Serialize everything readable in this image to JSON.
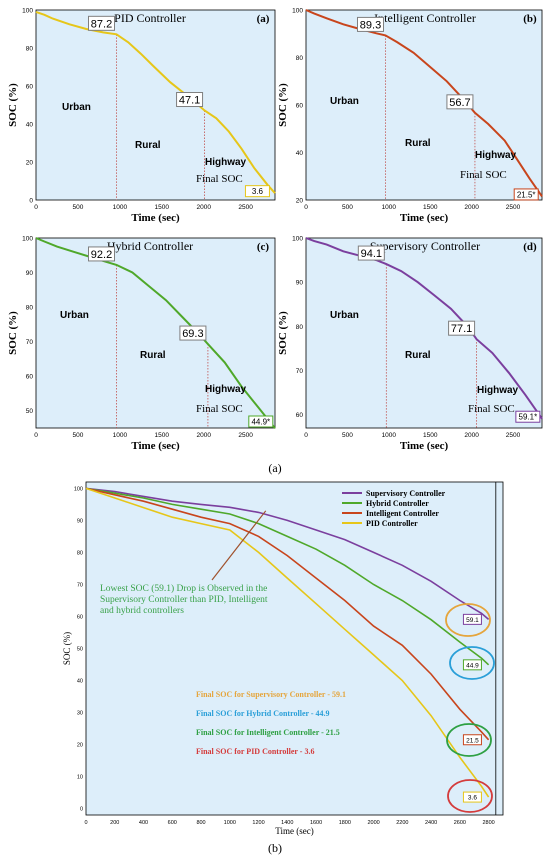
{
  "chart_data": [
    {
      "type": "line",
      "panel_label": "(a)",
      "title": "PID Controller",
      "xlabel": "Time (sec)",
      "ylabel": "SOC (%)",
      "xlim": [
        0,
        2850
      ],
      "ylim": [
        0,
        100
      ],
      "xticks": [
        "0",
        "500",
        "1000",
        "1500",
        "2000",
        "2500"
      ],
      "yticks": [
        "0",
        "20",
        "40",
        "60",
        "80",
        "100"
      ],
      "color": "#e6c619",
      "background": "#ddeefa",
      "zone_labels": [
        "Urban",
        "Rural",
        "Highway"
      ],
      "final_label": "Final SOC",
      "annotations": [
        {
          "x": 960,
          "y": 87.2,
          "text": "87.2"
        },
        {
          "x": 2010,
          "y": 47.1,
          "text": "47.1"
        },
        {
          "x": 2760,
          "y": 3.6,
          "text": "3.6"
        }
      ],
      "series": [
        {
          "x": [
            0,
            100,
            200,
            400,
            600,
            800,
            960,
            1100,
            1250,
            1400,
            1600,
            1800,
            2010,
            2150,
            2300,
            2450,
            2600,
            2760,
            2850
          ],
          "y": [
            99,
            97.5,
            95.5,
            92.5,
            90,
            88.2,
            87.2,
            83,
            77,
            70.5,
            62,
            55,
            47.1,
            43,
            36,
            27,
            17,
            8,
            3.6
          ]
        }
      ]
    },
    {
      "type": "line",
      "panel_label": "(b)",
      "title": "Intelligent Controller",
      "xlabel": "Time (sec)",
      "ylabel": "SOC (%)",
      "xlim": [
        0,
        2850
      ],
      "ylim": [
        20,
        100
      ],
      "xticks": [
        "0",
        "500",
        "1000",
        "1500",
        "2000",
        "2500"
      ],
      "yticks": [
        "20",
        "40",
        "60",
        "80",
        "100"
      ],
      "color": "#c8451c",
      "background": "#ddeefa",
      "zone_labels": [
        "Urban",
        "Rural",
        "Highway"
      ],
      "final_label": "Final SOC",
      "annotations": [
        {
          "x": 960,
          "y": 89.3,
          "text": "89.3"
        },
        {
          "x": 2040,
          "y": 56.7,
          "text": "56.7"
        },
        {
          "x": 2780,
          "y": 21.5,
          "text": "21.5*"
        }
      ],
      "series": [
        {
          "x": [
            0,
            100,
            250,
            450,
            650,
            850,
            960,
            1100,
            1300,
            1500,
            1700,
            1900,
            2040,
            2200,
            2400,
            2550,
            2700,
            2850
          ],
          "y": [
            100,
            98.5,
            96.5,
            94,
            92,
            90.2,
            89.3,
            86.5,
            82,
            76,
            70,
            62.5,
            56.7,
            52,
            45,
            37,
            29,
            21.5
          ]
        }
      ]
    },
    {
      "type": "line",
      "panel_label": "(c)",
      "title": "Hybrid Controller",
      "xlabel": "Time (sec)",
      "ylabel": "SOC (%)",
      "xlim": [
        0,
        2850
      ],
      "ylim": [
        45,
        100
      ],
      "xticks": [
        "0",
        "500",
        "1000",
        "1500",
        "2000",
        "2500"
      ],
      "yticks": [
        "50",
        "60",
        "70",
        "80",
        "90",
        "100"
      ],
      "color": "#4fa82a",
      "background": "#ddeefa",
      "zone_labels": [
        "Urban",
        "Rural",
        "Highway"
      ],
      "final_label": "Final SOC",
      "annotations": [
        {
          "x": 960,
          "y": 92.2,
          "text": "92.2"
        },
        {
          "x": 2050,
          "y": 69.3,
          "text": "69.3"
        },
        {
          "x": 2800,
          "y": 44.9,
          "text": "44.9*"
        }
      ],
      "series": [
        {
          "x": [
            0,
            100,
            250,
            450,
            650,
            850,
            960,
            1150,
            1350,
            1550,
            1750,
            1950,
            2050,
            2250,
            2450,
            2650,
            2850
          ],
          "y": [
            100,
            99,
            97.5,
            96,
            94.5,
            93,
            92.2,
            90,
            86,
            82,
            77,
            72,
            69.3,
            64,
            57,
            51,
            44.9
          ]
        }
      ]
    },
    {
      "type": "line",
      "panel_label": "(d)",
      "title": "Supervisory Controller",
      "xlabel": "Time (sec)",
      "ylabel": "SOC (%)",
      "xlim": [
        0,
        2850
      ],
      "ylim": [
        57,
        100
      ],
      "xticks": [
        "0",
        "500",
        "1000",
        "1500",
        "2000",
        "2500"
      ],
      "yticks": [
        "60",
        "70",
        "80",
        "90",
        "100"
      ],
      "color": "#7b3f9e",
      "background": "#ddeefa",
      "zone_labels": [
        "Urban",
        "Rural",
        "Highway"
      ],
      "final_label": "Final SOC",
      "annotations": [
        {
          "x": 970,
          "y": 94.1,
          "text": "94.1"
        },
        {
          "x": 2060,
          "y": 77.1,
          "text": "77.1"
        },
        {
          "x": 2800,
          "y": 59.1,
          "text": "59.1*"
        }
      ],
      "series": [
        {
          "x": [
            0,
            100,
            250,
            450,
            650,
            850,
            970,
            1150,
            1350,
            1550,
            1750,
            1950,
            2060,
            2250,
            2450,
            2650,
            2850
          ],
          "y": [
            100,
            99.3,
            98.5,
            97,
            96,
            95,
            94.1,
            92.5,
            90,
            87,
            84,
            80,
            77.1,
            74,
            69.5,
            64.5,
            59.1
          ]
        }
      ]
    },
    {
      "type": "line",
      "panel_label": "(b)",
      "xlabel": "Time (sec)",
      "ylabel": "SOC (%)",
      "xlim": [
        0,
        2900
      ],
      "ylim": [
        -2,
        102
      ],
      "xticks": [
        "0",
        "200",
        "400",
        "600",
        "800",
        "1000",
        "1200",
        "1400",
        "1600",
        "1800",
        "2000",
        "2200",
        "2400",
        "2600",
        "2800"
      ],
      "xtick_values": [
        0,
        200,
        400,
        600,
        800,
        1000,
        1200,
        1400,
        1600,
        1800,
        2000,
        2200,
        2400,
        2600,
        2800
      ],
      "yticks": [
        "0",
        "10",
        "20",
        "30",
        "40",
        "50",
        "60",
        "70",
        "80",
        "90",
        "100"
      ],
      "background": "#ddeefa",
      "legend_position": "top-right",
      "series": [
        {
          "name": "Supervisory Controller",
          "color": "#7b3f9e",
          "x": [
            0,
            200,
            400,
            600,
            800,
            1000,
            1200,
            1400,
            1600,
            1800,
            2000,
            2200,
            2400,
            2600,
            2750,
            2800
          ],
          "y": [
            100,
            99,
            97.5,
            96,
            95,
            94.1,
            92.5,
            90,
            87,
            84,
            80,
            76,
            71,
            65,
            61,
            59.1
          ]
        },
        {
          "name": "Hybrid Controller",
          "color": "#4fa82a",
          "x": [
            0,
            200,
            400,
            600,
            800,
            1000,
            1200,
            1400,
            1600,
            1800,
            2000,
            2200,
            2400,
            2600,
            2750,
            2800
          ],
          "y": [
            100,
            98.5,
            97,
            95,
            93.5,
            92,
            89,
            85,
            81,
            76,
            70,
            65,
            59,
            52,
            47,
            44.9
          ]
        },
        {
          "name": "Intelligent Controller",
          "color": "#c8451c",
          "x": [
            0,
            200,
            400,
            600,
            800,
            1000,
            1200,
            1400,
            1600,
            1800,
            2000,
            2200,
            2400,
            2600,
            2750,
            2800
          ],
          "y": [
            100,
            98,
            96,
            93.5,
            91,
            89,
            85,
            79,
            72,
            65,
            57,
            51,
            42,
            31,
            24,
            21.5
          ]
        },
        {
          "name": "PID Controller",
          "color": "#e6c619",
          "x": [
            0,
            200,
            400,
            600,
            800,
            1000,
            1200,
            1400,
            1600,
            1800,
            2000,
            2200,
            2400,
            2600,
            2750,
            2800
          ],
          "y": [
            100,
            97,
            94,
            91,
            89,
            87,
            80,
            72,
            64,
            56,
            48,
            40,
            29,
            16,
            7,
            3.6
          ]
        }
      ],
      "annotations": [
        {
          "x": 2750,
          "y": 59.1,
          "text": "59.1",
          "circle_color": "#e5a53c"
        },
        {
          "x": 2750,
          "y": 44.9,
          "text": "44.9",
          "circle_color": "#2a9fd8"
        },
        {
          "x": 2750,
          "y": 21.5,
          "text": "21.5",
          "circle_color": "#2ea043"
        },
        {
          "x": 2750,
          "y": 3.6,
          "text": "3.6",
          "circle_color": "#d43c3c"
        }
      ],
      "callout": {
        "text_lines": [
          "Lowest SOC (59.1) Drop is Observed in the",
          "Supervisory Controller than PID, Intelligent",
          "and hybrid controllers"
        ],
        "color": "#3aa24a",
        "arrow_to": {
          "x": 1250,
          "y": 93
        }
      },
      "final_notes": [
        {
          "text": "Final SOC for Supervisory Controller - 59.1",
          "color": "#e5a53c"
        },
        {
          "text": "Final SOC for Hybrid Controller - 44.9",
          "color": "#2a9fd8"
        },
        {
          "text": "Final SOC for Intelligent Controller - 21.5",
          "color": "#2ea043"
        },
        {
          "text": "Final SOC for PID Controller - 3.6",
          "color": "#d43c3c"
        }
      ]
    }
  ],
  "captions": {
    "top": "(a)",
    "bottom": "(b)"
  }
}
